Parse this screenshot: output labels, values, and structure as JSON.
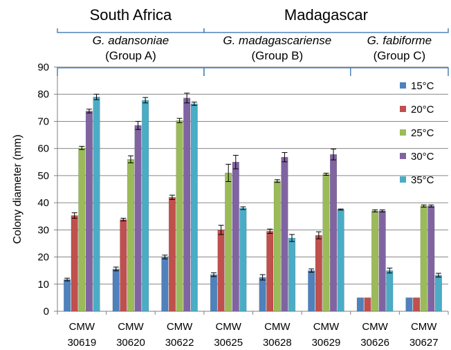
{
  "chart_data": {
    "type": "bar",
    "ylabel": "Colony diameter  (mm)",
    "ylim": [
      0,
      90
    ],
    "yticks": [
      0,
      10,
      20,
      30,
      40,
      50,
      60,
      70,
      80,
      90
    ],
    "grid": true,
    "legend_position": "right",
    "regions": [
      {
        "label": "South Africa",
        "categories": [
          0,
          2
        ]
      },
      {
        "label": "Madagascar",
        "categories": [
          3,
          7
        ]
      }
    ],
    "groups": [
      {
        "species": "G. adansoniae",
        "group": "(Group A)",
        "categories": [
          0,
          2
        ]
      },
      {
        "species": "G. madagascariense",
        "group": "(Group B)",
        "categories": [
          3,
          5
        ]
      },
      {
        "species": "G. fabiforme",
        "group": "(Group C)",
        "categories": [
          6,
          7
        ]
      }
    ],
    "categories": [
      {
        "line1": "CMW",
        "line2": "30619"
      },
      {
        "line1": "CMW",
        "line2": "30620"
      },
      {
        "line1": "CMW",
        "line2": "30622"
      },
      {
        "line1": "CMW",
        "line2": "30625"
      },
      {
        "line1": "CMW",
        "line2": "30628"
      },
      {
        "line1": "CMW",
        "line2": "30629"
      },
      {
        "line1": "CMW",
        "line2": "30626"
      },
      {
        "line1": "CMW",
        "line2": "30627"
      }
    ],
    "series": [
      {
        "name": "15°C",
        "color": "#4f81bd",
        "values": [
          11.7,
          15.6,
          20.0,
          13.5,
          12.5,
          15.0,
          5.0,
          5.0
        ],
        "errors": [
          0.5,
          0.7,
          0.7,
          0.7,
          1.0,
          0.6,
          0,
          0
        ]
      },
      {
        "name": "20°C",
        "color": "#c0504d",
        "values": [
          35.3,
          33.8,
          42.0,
          30.0,
          29.5,
          28.0,
          5.0,
          5.0
        ],
        "errors": [
          1.0,
          0.5,
          0.8,
          1.7,
          0.8,
          1.3,
          0,
          0
        ]
      },
      {
        "name": "25°C",
        "color": "#9bbb59",
        "values": [
          60.2,
          56.0,
          70.3,
          51.0,
          48.0,
          50.5,
          37.0,
          38.8
        ],
        "errors": [
          0.6,
          1.3,
          0.8,
          3.2,
          0.5,
          0.4,
          0.4,
          0.4
        ]
      },
      {
        "name": "30°C",
        "color": "#8064a2",
        "values": [
          73.8,
          68.5,
          78.6,
          55.0,
          56.8,
          57.8,
          37.0,
          38.8
        ],
        "errors": [
          0.7,
          1.5,
          1.8,
          2.5,
          1.7,
          2.0,
          0.4,
          0.4
        ]
      },
      {
        "name": "35°C",
        "color": "#4bacc6",
        "values": [
          79.0,
          77.8,
          76.5,
          38.0,
          27.0,
          37.5,
          15.0,
          13.3
        ],
        "errors": [
          1.0,
          1.0,
          0.6,
          0.5,
          1.3,
          0.2,
          0.9,
          0.7
        ]
      }
    ]
  }
}
